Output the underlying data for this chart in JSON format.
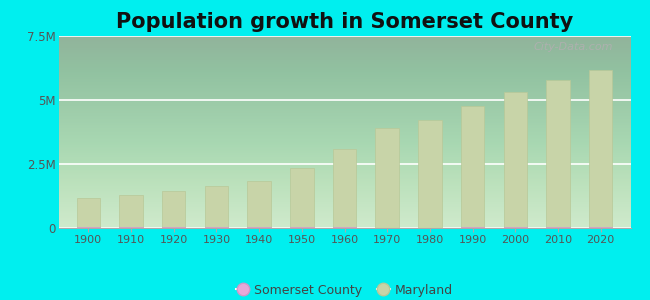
{
  "title": "Population growth in Somerset County",
  "title_fontsize": 15,
  "title_fontweight": "bold",
  "background_color": "#00EFEF",
  "bar_color": "#c8d4a8",
  "bar_edge_color": "#b8c898",
  "somerset_color": "#e8a8d8",
  "maryland_color": "#c8d4a8",
  "years": [
    1900,
    1910,
    1920,
    1930,
    1940,
    1950,
    1960,
    1970,
    1980,
    1990,
    2000,
    2010,
    2020
  ],
  "maryland_pop": [
    1188044,
    1295346,
    1449661,
    1631526,
    1821244,
    2343001,
    3100689,
    3922399,
    4216975,
    4781468,
    5296486,
    5773552,
    6177224
  ],
  "somerset_pop": [
    24252,
    24457,
    25492,
    27913,
    24472,
    20745,
    19623,
    18924,
    19188,
    23440,
    24747,
    26470,
    25616
  ],
  "ylim": [
    0,
    7500000
  ],
  "yticks": [
    0,
    2500000,
    5000000,
    7500000
  ],
  "ytick_labels": [
    "0",
    "2.5M",
    "5M",
    "7.5M"
  ],
  "watermark": "City-Data.com",
  "bar_width": 5.5,
  "xlim_left": 1893,
  "xlim_right": 2027
}
